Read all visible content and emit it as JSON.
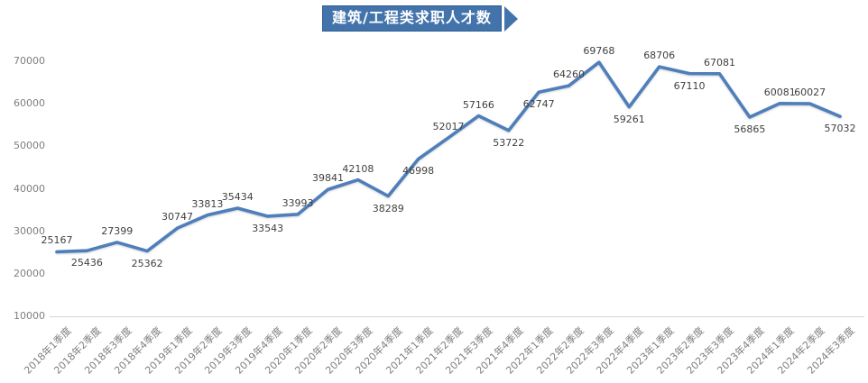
{
  "title": {
    "text": "建筑/工程类求职人才数"
  },
  "colors": {
    "line": "#4e7fbb",
    "banner_fill": "#4273ab",
    "banner_border": "#2f5d94",
    "banner_text": "#ffffff",
    "data_label_text": "#404040",
    "axis_text": "#7f7f7f",
    "axis_line": "#d3d3d3"
  },
  "chart_data": {
    "type": "line",
    "title": "建筑/工程类求职人才数",
    "categories": [
      "2018年1季度",
      "2018年2季度",
      "2018年3季度",
      "2018年4季度",
      "2019年1季度",
      "2019年2季度",
      "2019年3季度",
      "2019年4季度",
      "2020年1季度",
      "2020年2季度",
      "2020年3季度",
      "2020年4季度",
      "2021年1季度",
      "2021年2季度",
      "2021年3季度",
      "2021年4季度",
      "2022年1季度",
      "2022年2季度",
      "2022年3季度",
      "2022年4季度",
      "2023年1季度",
      "2023年2季度",
      "2023年3季度",
      "2023年4季度",
      "2024年1季度",
      "2024年2季度",
      "2024年3季度"
    ],
    "values": [
      25167,
      25436,
      27399,
      25362,
      30747,
      33813,
      35434,
      33543,
      33993,
      39841,
      42108,
      38289,
      46998,
      52017,
      57166,
      53722,
      62747,
      64260,
      69768,
      59261,
      68706,
      67110,
      67081,
      56865,
      60081,
      60027,
      57032
    ],
    "label_positions": [
      "above",
      "below",
      "above",
      "below",
      "above",
      "above",
      "above",
      "below",
      "above",
      "above",
      "above",
      "below",
      "below",
      "above",
      "above",
      "below",
      "below",
      "above",
      "above",
      "below",
      "above",
      "below",
      "above",
      "below",
      "above",
      "above",
      "below"
    ],
    "y_ticks": [
      10000,
      20000,
      30000,
      40000,
      50000,
      60000,
      70000
    ],
    "ylim": [
      10000,
      70000
    ],
    "xlabel": "",
    "ylabel": "",
    "grid": false,
    "legend": false,
    "data_labels": true
  }
}
